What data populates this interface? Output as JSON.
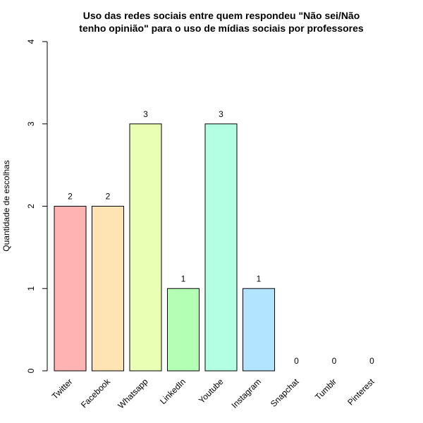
{
  "chart_data": {
    "type": "bar",
    "title_line1": "Uso das redes sociais entre quem respondeu \"Não sei/Não",
    "title_line2": "tenho opinião\" para o uso de mídias sociais por professores",
    "xlabel": "",
    "ylabel": "Quantidade de escolhas",
    "ylim": [
      0,
      4
    ],
    "yticks": [
      "0",
      "1",
      "2",
      "3",
      "4"
    ],
    "grid": false,
    "legend": "none",
    "categories": [
      "Twitter",
      "Facebook",
      "Whatsapp",
      "LinkedIn",
      "Youtube",
      "Instagram",
      "Snapchat",
      "Tumblr",
      "Pinterest"
    ],
    "values": [
      2,
      2,
      3,
      1,
      3,
      1,
      0,
      0,
      0
    ],
    "data_labels": [
      "2",
      "2",
      "3",
      "1",
      "3",
      "1",
      "0",
      "0",
      "0"
    ],
    "colors": [
      "#FFB3B3",
      "#FFE4B3",
      "#E9FFB3",
      "#B3FFB3",
      "#B3FFE4",
      "#B3E4FF",
      "#B3B3FF",
      "#E4B3FF",
      "#FFB3E9"
    ]
  }
}
